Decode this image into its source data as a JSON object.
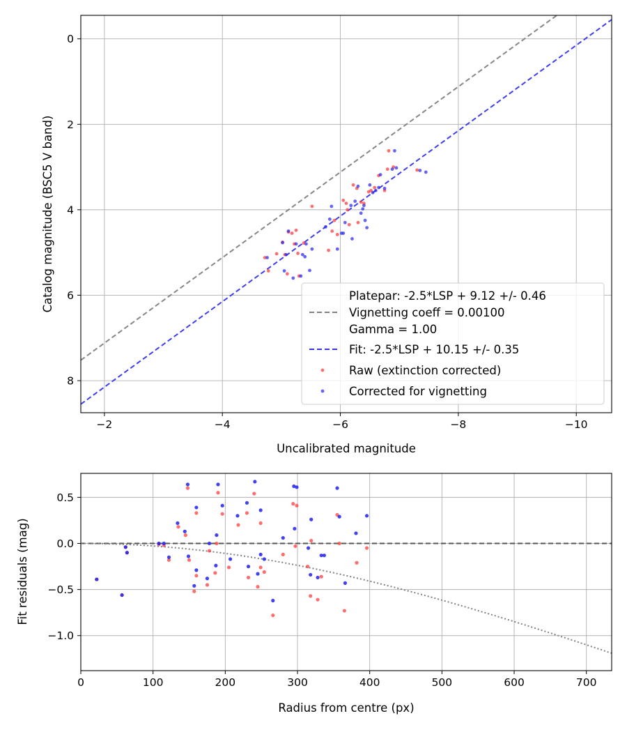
{
  "chart_data": [
    {
      "type": "scatter",
      "title": "",
      "xlabel": "Uncalibrated magnitude",
      "ylabel": "Catalog magnitude (BSC5 V band)",
      "xlim": [
        -1.6,
        -10.6
      ],
      "ylim": [
        8.75,
        -0.55
      ],
      "x_inverted": true,
      "y_inverted": true,
      "xticks": [
        -2,
        -4,
        -6,
        -8,
        -10
      ],
      "xtick_labels": [
        "−2",
        "−4",
        "−6",
        "−8",
        "−10"
      ],
      "yticks": [
        0,
        2,
        4,
        6,
        8
      ],
      "ytick_labels": [
        "0",
        "2",
        "4",
        "6",
        "8"
      ],
      "grid": true,
      "legend_position": "bottom-right",
      "legend": {
        "platepar_lines": [
          "Platepar: -2.5*LSP + 9.12 +/- 0.46",
          "Vignetting coeff = 0.00100",
          "Gamma = 1.00"
        ],
        "fit_label": "Fit: -2.5*LSP + 10.15 +/- 0.35",
        "raw_label": "Raw (extinction corrected)",
        "corrected_label": "Corrected for vignetting"
      },
      "lines": [
        {
          "name": "Platepar",
          "slope": 1.0,
          "intercept": 9.12,
          "color": "#808080",
          "style": "dashed"
        },
        {
          "name": "Fit",
          "slope": 1.0,
          "intercept": 10.15,
          "color": "#3333ee",
          "style": "dashed"
        }
      ],
      "series": [
        {
          "name": "Raw (extinction corrected)",
          "color": "#ff3030",
          "points": [
            [
              -4.72,
              5.12
            ],
            [
              -4.78,
              5.43
            ],
            [
              -4.92,
              5.03
            ],
            [
              -5.02,
              4.76
            ],
            [
              -5.06,
              5.05
            ],
            [
              -5.1,
              5.5
            ],
            [
              -5.12,
              4.52
            ],
            [
              -5.18,
              4.55
            ],
            [
              -5.22,
              4.8
            ],
            [
              -5.25,
              4.48
            ],
            [
              -5.28,
              5.02
            ],
            [
              -5.3,
              5.55
            ],
            [
              -5.38,
              4.78
            ],
            [
              -5.52,
              3.92
            ],
            [
              -5.8,
              4.95
            ],
            [
              -5.86,
              4.5
            ],
            [
              -5.9,
              4.25
            ],
            [
              -5.95,
              4.58
            ],
            [
              -6.05,
              3.78
            ],
            [
              -6.1,
              3.85
            ],
            [
              -6.12,
              4.0
            ],
            [
              -6.15,
              4.35
            ],
            [
              -6.22,
              3.42
            ],
            [
              -6.28,
              3.5
            ],
            [
              -6.3,
              4.3
            ],
            [
              -6.35,
              3.82
            ],
            [
              -6.4,
              3.85
            ],
            [
              -6.48,
              3.58
            ],
            [
              -6.52,
              3.55
            ],
            [
              -6.58,
              3.48
            ],
            [
              -6.65,
              3.2
            ],
            [
              -6.75,
              3.55
            ],
            [
              -6.8,
              3.05
            ],
            [
              -6.82,
              2.62
            ],
            [
              -6.9,
              3.0
            ],
            [
              -7.3,
              3.07
            ]
          ]
        },
        {
          "name": "Corrected for vignetting",
          "color": "#2424ee",
          "points": [
            [
              -4.76,
              5.12
            ],
            [
              -5.02,
              4.77
            ],
            [
              -5.05,
              5.43
            ],
            [
              -5.08,
              5.05
            ],
            [
              -5.12,
              4.5
            ],
            [
              -5.2,
              5.6
            ],
            [
              -5.25,
              4.8
            ],
            [
              -5.33,
              5.55
            ],
            [
              -5.36,
              5.05
            ],
            [
              -5.4,
              5.1
            ],
            [
              -5.42,
              4.8
            ],
            [
              -5.48,
              5.42
            ],
            [
              -5.52,
              4.92
            ],
            [
              -5.75,
              4.4
            ],
            [
              -5.82,
              4.22
            ],
            [
              -5.85,
              3.92
            ],
            [
              -5.95,
              4.92
            ],
            [
              -6.02,
              4.55
            ],
            [
              -6.05,
              4.55
            ],
            [
              -6.08,
              4.3
            ],
            [
              -6.18,
              3.9
            ],
            [
              -6.2,
              4.68
            ],
            [
              -6.25,
              3.8
            ],
            [
              -6.3,
              3.45
            ],
            [
              -6.35,
              4.08
            ],
            [
              -6.38,
              3.98
            ],
            [
              -6.4,
              3.9
            ],
            [
              -6.42,
              4.25
            ],
            [
              -6.45,
              4.42
            ],
            [
              -6.5,
              3.42
            ],
            [
              -6.55,
              3.6
            ],
            [
              -6.6,
              3.55
            ],
            [
              -6.65,
              3.48
            ],
            [
              -6.68,
              3.18
            ],
            [
              -6.75,
              3.5
            ],
            [
              -6.88,
              3.05
            ],
            [
              -6.92,
              2.62
            ],
            [
              -6.95,
              3.02
            ],
            [
              -7.35,
              3.08
            ],
            [
              -7.45,
              3.12
            ]
          ]
        }
      ]
    },
    {
      "type": "scatter",
      "title": "",
      "xlabel": "Radius from centre (px)",
      "ylabel": "Fit residuals (mag)",
      "xlim": [
        0,
        735
      ],
      "ylim": [
        -1.38,
        0.76
      ],
      "xticks": [
        0,
        100,
        200,
        300,
        400,
        500,
        600,
        700
      ],
      "xtick_labels": [
        "0",
        "100",
        "200",
        "300",
        "400",
        "500",
        "600",
        "700"
      ],
      "yticks": [
        0.5,
        0.0,
        -0.5,
        -1.0
      ],
      "ytick_labels": [
        "0.5",
        "0.0",
        "−0.5",
        "−1.0"
      ],
      "grid": true,
      "zero_line": {
        "color": "#555555",
        "style": "dashed"
      },
      "vignetting_curve": {
        "coeff": 0.001,
        "color": "#808080",
        "style": "dotted"
      },
      "series": [
        {
          "name": "Raw",
          "color": "#ff3030",
          "points": [
            [
              22,
              -0.39
            ],
            [
              57,
              -0.56
            ],
            [
              62,
              -0.04
            ],
            [
              64,
              -0.1
            ],
            [
              108,
              -0.01
            ],
            [
              115,
              -0.02
            ],
            [
              122,
              -0.18
            ],
            [
              135,
              0.18
            ],
            [
              145,
              0.09
            ],
            [
              148,
              0.6
            ],
            [
              150,
              -0.18
            ],
            [
              157,
              -0.52
            ],
            [
              160,
              0.33
            ],
            [
              160,
              -0.35
            ],
            [
              175,
              -0.45
            ],
            [
              178,
              -0.08
            ],
            [
              186,
              -0.32
            ],
            [
              188,
              0.0
            ],
            [
              190,
              0.55
            ],
            [
              196,
              0.32
            ],
            [
              205,
              -0.26
            ],
            [
              218,
              0.2
            ],
            [
              230,
              0.33
            ],
            [
              232,
              -0.37
            ],
            [
              240,
              0.54
            ],
            [
              245,
              -0.47
            ],
            [
              249,
              0.22
            ],
            [
              249,
              -0.26
            ],
            [
              254,
              -0.31
            ],
            [
              266,
              -0.78
            ],
            [
              280,
              -0.12
            ],
            [
              294,
              0.43
            ],
            [
              297,
              -0.03
            ],
            [
              299,
              0.41
            ],
            [
              314,
              -0.25
            ],
            [
              318,
              -0.57
            ],
            [
              319,
              0.03
            ],
            [
              328,
              -0.61
            ],
            [
              333,
              -0.36
            ],
            [
              355,
              0.31
            ],
            [
              358,
              0.0
            ],
            [
              365,
              -0.73
            ],
            [
              382,
              -0.21
            ],
            [
              396,
              -0.05
            ]
          ]
        },
        {
          "name": "Corrected",
          "color": "#2020ee",
          "points": [
            [
              22,
              -0.39
            ],
            [
              57,
              -0.56
            ],
            [
              62,
              -0.04
            ],
            [
              64,
              -0.1
            ],
            [
              108,
              0.0
            ],
            [
              115,
              0.0
            ],
            [
              122,
              -0.15
            ],
            [
              134,
              0.22
            ],
            [
              144,
              0.13
            ],
            [
              148,
              0.64
            ],
            [
              149,
              -0.14
            ],
            [
              157,
              -0.46
            ],
            [
              160,
              0.39
            ],
            [
              160,
              -0.29
            ],
            [
              175,
              -0.38
            ],
            [
              178,
              0.0
            ],
            [
              187,
              -0.24
            ],
            [
              188,
              0.09
            ],
            [
              190,
              0.64
            ],
            [
              196,
              0.41
            ],
            [
              207,
              -0.17
            ],
            [
              217,
              0.3
            ],
            [
              230,
              0.44
            ],
            [
              232,
              -0.25
            ],
            [
              241,
              0.67
            ],
            [
              245,
              -0.33
            ],
            [
              249,
              0.36
            ],
            [
              249,
              -0.12
            ],
            [
              254,
              -0.17
            ],
            [
              266,
              -0.62
            ],
            [
              280,
              0.06
            ],
            [
              295,
              0.62
            ],
            [
              296,
              0.16
            ],
            [
              299,
              0.61
            ],
            [
              315,
              -0.05
            ],
            [
              318,
              -0.34
            ],
            [
              319,
              0.26
            ],
            [
              328,
              -0.37
            ],
            [
              333,
              -0.13
            ],
            [
              337,
              -0.13
            ],
            [
              355,
              0.6
            ],
            [
              358,
              0.29
            ],
            [
              366,
              -0.43
            ],
            [
              381,
              0.11
            ],
            [
              396,
              0.3
            ]
          ]
        }
      ]
    }
  ]
}
